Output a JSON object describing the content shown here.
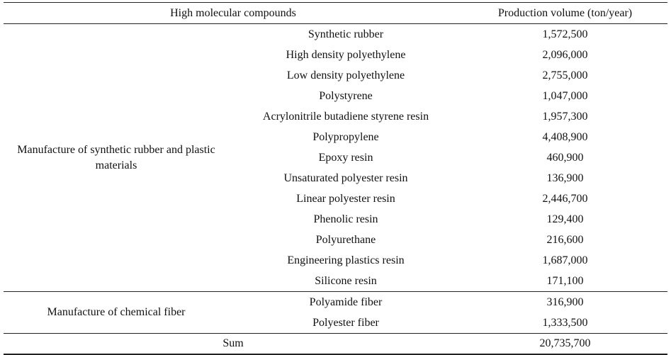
{
  "headers": {
    "compounds": "High molecular compounds",
    "volume": "Production volume (ton/year)"
  },
  "groups": [
    {
      "label": "Manufacture of synthetic rubber and plastic materials",
      "rows": [
        {
          "name": "Synthetic rubber",
          "value": "1,572,500"
        },
        {
          "name": "High density polyethylene",
          "value": "2,096,000"
        },
        {
          "name": "Low density polyethylene",
          "value": "2,755,000"
        },
        {
          "name": "Polystyrene",
          "value": "1,047,000"
        },
        {
          "name": "Acrylonitrile butadiene styrene resin",
          "value": "1,957,300"
        },
        {
          "name": "Polypropylene",
          "value": "4,408,900"
        },
        {
          "name": "Epoxy resin",
          "value": "460,900"
        },
        {
          "name": "Unsaturated polyester resin",
          "value": "136,900"
        },
        {
          "name": "Linear polyester resin",
          "value": "2,446,700"
        },
        {
          "name": "Phenolic resin",
          "value": "129,400"
        },
        {
          "name": "Polyurethane",
          "value": "216,600"
        },
        {
          "name": "Engineering plastics resin",
          "value": "1,687,000"
        },
        {
          "name": "Silicone resin",
          "value": "171,100"
        }
      ]
    },
    {
      "label": "Manufacture of chemical fiber",
      "rows": [
        {
          "name": "Polyamide fiber",
          "value": "316,900"
        },
        {
          "name": "Polyester fiber",
          "value": "1,333,500"
        }
      ]
    }
  ],
  "sum": {
    "label": "Sum",
    "value": "20,735,700"
  }
}
